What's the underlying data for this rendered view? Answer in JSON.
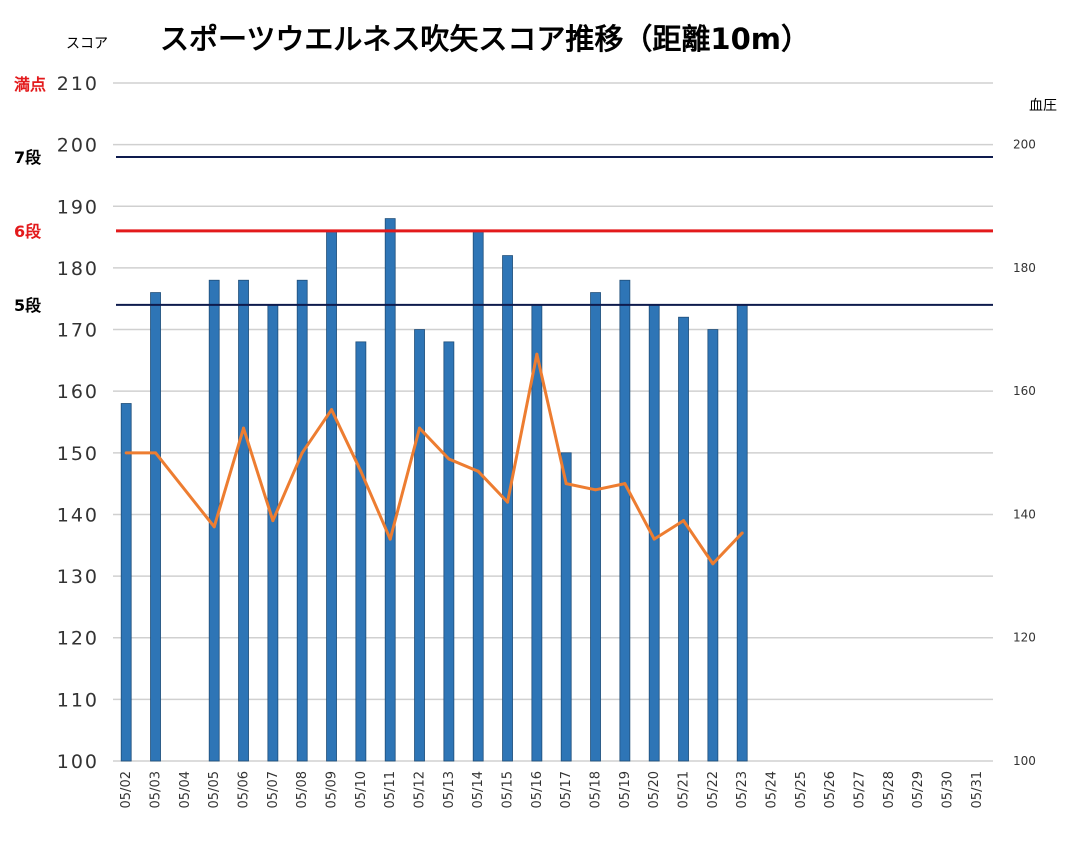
{
  "chart_data": {
    "type": "bar",
    "title": "スポーツウエルネス吹矢スコア推移（距離10m）",
    "ylabel": "スコア",
    "y2label": "血圧",
    "ylim": [
      100,
      210
    ],
    "y2lim": [
      100,
      210
    ],
    "yticks": [
      "100",
      "110",
      "120",
      "130",
      "140",
      "150",
      "160",
      "170",
      "180",
      "190",
      "200",
      "210"
    ],
    "y2ticks": [
      "100",
      "120",
      "140",
      "160",
      "180",
      "200"
    ],
    "grid": true,
    "categories": [
      "05/02",
      "05/03",
      "05/04",
      "05/05",
      "05/06",
      "05/07",
      "05/08",
      "05/09",
      "05/10",
      "05/11",
      "05/12",
      "05/13",
      "05/14",
      "05/15",
      "05/16",
      "05/17",
      "05/18",
      "05/19",
      "05/20",
      "05/21",
      "05/22",
      "05/23",
      "05/24",
      "05/25",
      "05/26",
      "05/27",
      "05/28",
      "05/29",
      "05/30",
      "05/31"
    ],
    "series": [
      {
        "type": "bar",
        "axis": "left",
        "color": "#2E75B6",
        "values": [
          158,
          176,
          null,
          178,
          178,
          174,
          178,
          186,
          168,
          188,
          170,
          168,
          186,
          182,
          174,
          150,
          176,
          178,
          174,
          172,
          170,
          174,
          null,
          null,
          null,
          null,
          null,
          null,
          null,
          null
        ]
      },
      {
        "type": "line",
        "axis": "right",
        "color": "#ED7D31",
        "values": [
          150,
          150,
          null,
          138,
          154,
          139,
          150,
          157,
          147,
          136,
          154,
          149,
          147,
          142,
          166,
          145,
          144,
          145,
          136,
          139,
          132,
          137,
          null,
          null,
          null,
          null,
          null,
          null,
          null,
          null
        ]
      }
    ],
    "reference_lines": [
      {
        "label": "満点",
        "value": 210,
        "color": "#E31A1C",
        "line": false
      },
      {
        "label": "7段",
        "value": 198,
        "color": "#000000",
        "line_color": "#0E1B4D",
        "line": true
      },
      {
        "label": "6段",
        "value": 186,
        "color": "#E31A1C",
        "line_color": "#E31A1C",
        "line": true
      },
      {
        "label": "5段",
        "value": 174,
        "color": "#000000",
        "line_color": "#0E1B4D",
        "line": true
      }
    ]
  }
}
